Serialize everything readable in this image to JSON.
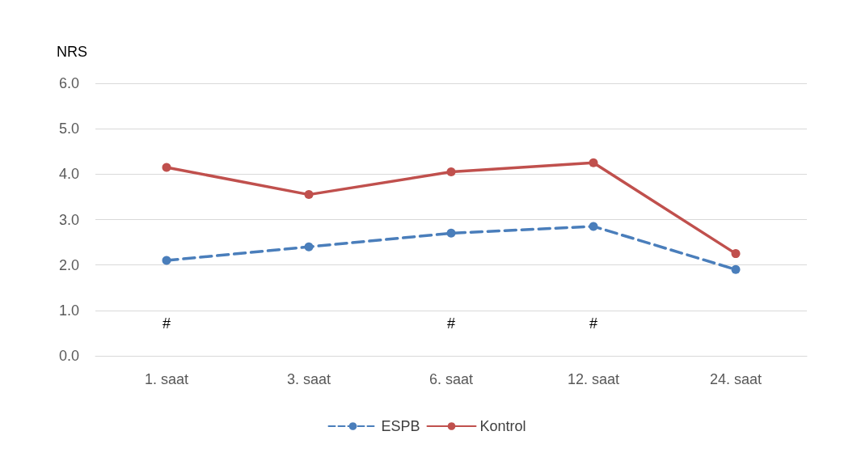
{
  "chart_data": {
    "type": "line",
    "ylabel": "NRS",
    "categories": [
      "1. saat",
      "3. saat",
      "6. saat",
      "12. saat",
      "24. saat"
    ],
    "series": [
      {
        "name": "ESPB",
        "color": "#4a7ebb",
        "line_style": "dashed",
        "values": [
          2.1,
          2.4,
          2.7,
          2.85,
          1.9
        ]
      },
      {
        "name": "Kontrol",
        "color": "#c0504d",
        "line_style": "solid",
        "values": [
          4.15,
          3.55,
          4.05,
          4.25,
          2.25
        ]
      }
    ],
    "ylim": [
      0,
      6
    ],
    "yticks": [
      {
        "value": 0,
        "label": "0.0"
      },
      {
        "value": 1,
        "label": "1.0"
      },
      {
        "value": 2,
        "label": "2.0"
      },
      {
        "value": 3,
        "label": "3.0"
      },
      {
        "value": 4,
        "label": "4.0"
      },
      {
        "value": 5,
        "label": "5.0"
      },
      {
        "value": 6,
        "label": "6.0"
      }
    ],
    "annotations": [
      "#",
      "#",
      "#"
    ],
    "grid": "y",
    "legend": "bottom",
    "marker": "circle"
  }
}
